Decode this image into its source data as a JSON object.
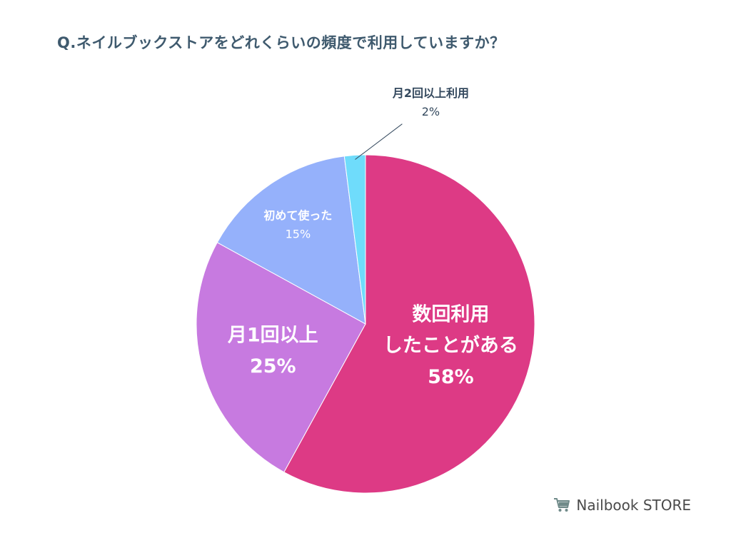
{
  "title": "Q.ネイルブックストアをどれくらいの頻度で利用していますか？",
  "brand": {
    "name": "Nailbook STORE",
    "icon": "shopping-cart-icon"
  },
  "chart_data": {
    "type": "pie",
    "start": "top",
    "direction": "clockwise",
    "slices": [
      {
        "label": "数回利用\nしたことがある",
        "value": 58,
        "display": "58%",
        "color": "#dd3a85",
        "label_color": "#ffffff"
      },
      {
        "label": "月1回以上",
        "value": 25,
        "display": "25%",
        "color": "#c77ae0",
        "label_color": "#ffffff"
      },
      {
        "label": "初めて使った",
        "value": 15,
        "display": "15%",
        "color": "#95b1fb",
        "label_color": "#ffffff"
      },
      {
        "label": "月2回以上利用",
        "value": 2,
        "display": "2%",
        "color": "#6fdcfb",
        "label_color": "#34495e"
      }
    ]
  }
}
